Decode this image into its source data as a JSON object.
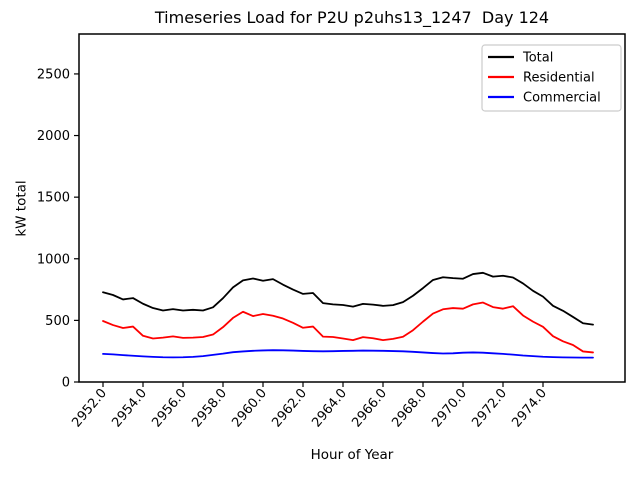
{
  "figure": {
    "title": "Timeseries Load for P2U p2uhs13_1247  Day 124",
    "xlabel": "Hour of Year",
    "ylabel": "kW total"
  },
  "chart_data": {
    "type": "line",
    "title": "Timeseries Load for P2U p2uhs13_1247  Day 124",
    "xlabel": "Hour of Year",
    "ylabel": "kW total",
    "grid": false,
    "legend_position": "upper right",
    "xlim": [
      2950.8,
      2978.1
    ],
    "ylim": [
      0,
      2824
    ],
    "x_ticks": [
      2952,
      2954,
      2956,
      2958,
      2960,
      2962,
      2964,
      2966,
      2968,
      2970,
      2972,
      2974
    ],
    "x_tick_labels": [
      "2952.0",
      "2954.0",
      "2956.0",
      "2958.0",
      "2960.0",
      "2962.0",
      "2964.0",
      "2966.0",
      "2968.0",
      "2970.0",
      "2972.0",
      "2974.0"
    ],
    "y_ticks": [
      0,
      500,
      1000,
      1500,
      2000,
      2500
    ],
    "y_tick_labels": [
      "0",
      "500",
      "1000",
      "1500",
      "2000",
      "2500"
    ],
    "x": [
      2952.0,
      2952.5,
      2953.0,
      2953.5,
      2954.0,
      2954.5,
      2955.0,
      2955.5,
      2956.0,
      2956.5,
      2957.0,
      2957.5,
      2958.0,
      2958.5,
      2959.0,
      2959.5,
      2960.0,
      2960.5,
      2961.0,
      2961.5,
      2962.0,
      2962.5,
      2963.0,
      2963.5,
      2964.0,
      2964.5,
      2965.0,
      2965.5,
      2966.0,
      2966.5,
      2967.0,
      2967.5,
      2968.0,
      2968.5,
      2969.0,
      2969.5,
      2970.0,
      2970.5,
      2971.0,
      2971.5,
      2972.0,
      2972.5,
      2973.0,
      2973.5,
      2974.0,
      2974.5,
      2975.0,
      2975.5,
      2976.0,
      2976.5
    ],
    "series": [
      {
        "name": "Total",
        "color": "#000000",
        "values": [
          728,
          706,
          670,
          681,
          635,
          600,
          580,
          591,
          580,
          586,
          580,
          606,
          680,
          768,
          825,
          840,
          822,
          835,
          790,
          750,
          715,
          722,
          640,
          630,
          625,
          612,
          634,
          628,
          618,
          624,
          648,
          700,
          762,
          828,
          850,
          843,
          838,
          876,
          886,
          855,
          862,
          848,
          800,
          740,
          693,
          618,
          578,
          528,
          477,
          466
        ]
      },
      {
        "name": "Residential",
        "color": "#ff0000",
        "values": [
          495,
          462,
          438,
          450,
          375,
          353,
          360,
          370,
          358,
          360,
          365,
          385,
          445,
          520,
          570,
          535,
          552,
          538,
          515,
          480,
          440,
          450,
          368,
          365,
          353,
          340,
          364,
          355,
          340,
          350,
          367,
          420,
          490,
          555,
          590,
          600,
          595,
          630,
          645,
          608,
          595,
          615,
          540,
          490,
          448,
          372,
          330,
          300,
          248,
          240
        ]
      },
      {
        "name": "Commercial",
        "color": "#0000ff",
        "values": [
          228,
          224,
          218,
          213,
          208,
          204,
          201,
          200,
          201,
          204,
          210,
          220,
          230,
          242,
          248,
          253,
          256,
          258,
          257,
          255,
          252,
          250,
          249,
          250,
          252,
          253,
          255,
          254,
          253,
          251,
          249,
          245,
          240,
          235,
          231,
          233,
          238,
          240,
          238,
          233,
          228,
          222,
          215,
          210,
          205,
          202,
          200,
          199,
          198,
          198
        ]
      }
    ]
  }
}
